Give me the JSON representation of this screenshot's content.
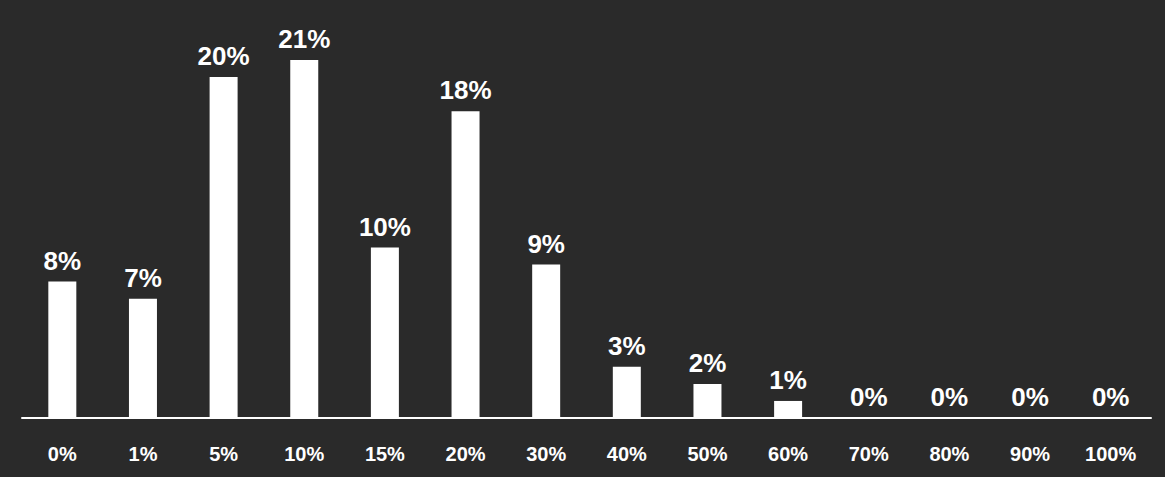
{
  "chart_data": {
    "type": "bar",
    "categories": [
      "0%",
      "1%",
      "5%",
      "10%",
      "15%",
      "20%",
      "30%",
      "40%",
      "50%",
      "60%",
      "70%",
      "80%",
      "90%",
      "100%"
    ],
    "values": [
      8,
      7,
      20,
      21,
      10,
      18,
      9,
      3,
      2,
      1,
      0,
      0,
      0,
      0
    ],
    "value_labels": [
      "8%",
      "7%",
      "20%",
      "21%",
      "10%",
      "18%",
      "9%",
      "3%",
      "2%",
      "1%",
      "0%",
      "0%",
      "0%",
      "0%"
    ],
    "color": "#ffffff",
    "data_labels": true,
    "tick_labels": "x",
    "grid": false
  }
}
